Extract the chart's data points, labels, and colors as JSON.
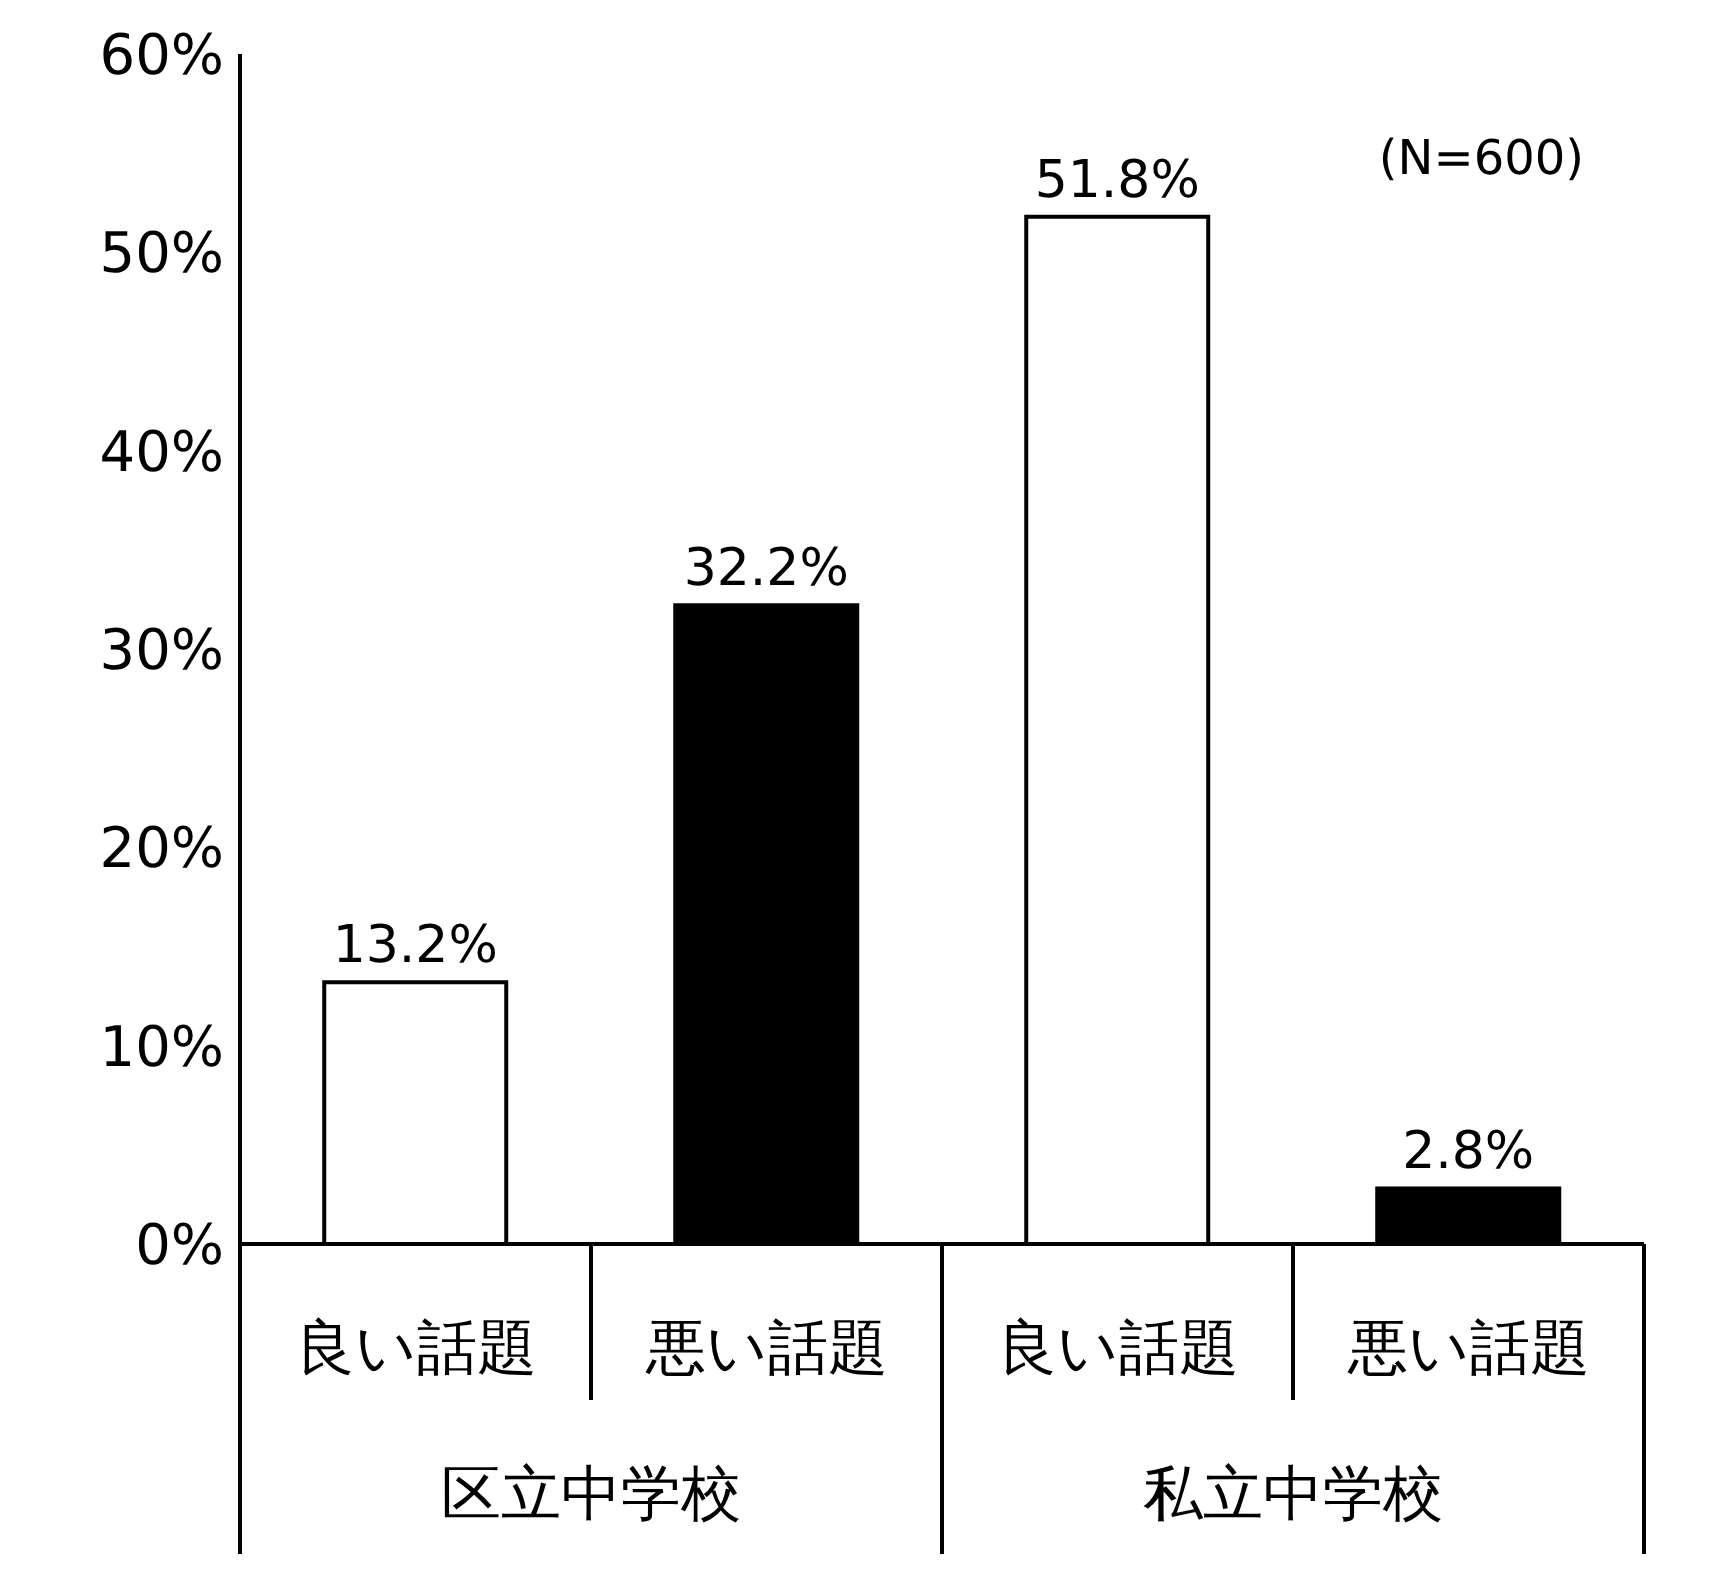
{
  "chart_data": {
    "type": "bar",
    "categories": [
      "良い話題",
      "悪い話題",
      "良い話題",
      "悪い話題"
    ],
    "values": [
      13.2,
      32.2,
      51.8,
      2.8
    ],
    "colors": [
      "#ffffff",
      "#000000",
      "#ffffff",
      "#000000"
    ],
    "value_labels": [
      "13.2%",
      "32.2%",
      "51.8%",
      "2.8%"
    ],
    "ylim": [
      0,
      60
    ],
    "yticks": [
      {
        "value": 0,
        "label": "0%"
      },
      {
        "value": 10,
        "label": "10%"
      },
      {
        "value": 20,
        "label": "20%"
      },
      {
        "value": 30,
        "label": "30%"
      },
      {
        "value": 40,
        "label": "40%"
      },
      {
        "value": 50,
        "label": "50%"
      },
      {
        "value": 60,
        "label": "60%"
      }
    ],
    "annotations": [
      "(N=600)",
      "区立中学校",
      "私立中学校"
    ],
    "grid": false,
    "legend": false
  }
}
